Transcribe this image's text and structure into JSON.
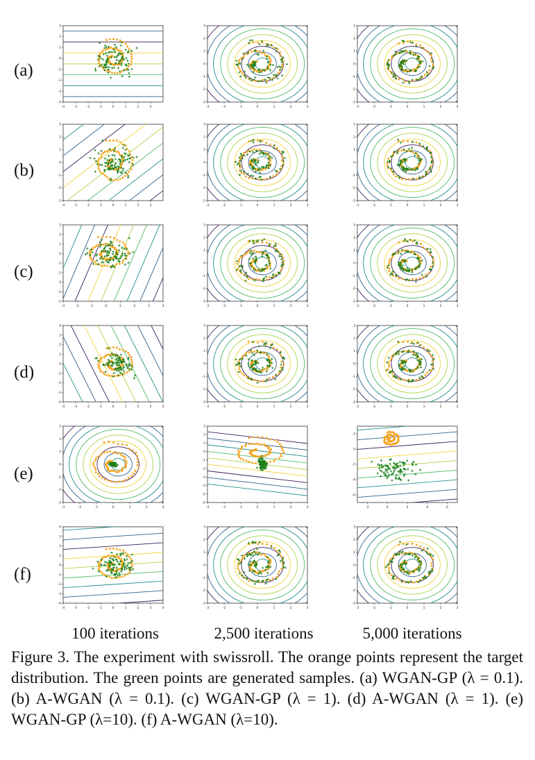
{
  "figure": {
    "row_labels": [
      "(a)",
      "(b)",
      "(c)",
      "(d)",
      "(e)",
      "(f)"
    ],
    "column_labels": [
      "100 iterations",
      "2,500 iterations",
      "5,000 iterations"
    ],
    "caption": "Figure 3.  The experiment with swissroll. The orange points represent the target distribution. The green points are generated samples.  (a) WGAN-GP (λ = 0.1).  (b) A-WGAN (λ = 0.1).  (c) WGAN-GP (λ = 1).  (d) A-WGAN (λ = 1).  (e) WGAN-GP (λ=10). (f) A-WGAN (λ=10).",
    "colors": {
      "target_points": "#f5a623",
      "generated_points": "#1a7f1a",
      "contour_palette": [
        "#3b1c5a",
        "#2c5f8a",
        "#1f8f8a",
        "#4fb86a",
        "#a8d54a",
        "#f0d43a"
      ]
    }
  },
  "chart_data": [
    {
      "type": "scatter",
      "row": "(a)",
      "column": "100 iterations",
      "xlim": [
        -4,
        4
      ],
      "ylim": [
        -4,
        3
      ],
      "xticks": [
        -4,
        -3,
        -2,
        -1,
        0,
        1,
        2,
        3
      ],
      "yticks": [
        -4,
        -3,
        -2,
        -1,
        0,
        1,
        2,
        3
      ],
      "series": [
        {
          "values": "swissroll"
        },
        {
          "values": "generated"
        }
      ]
    },
    {
      "type": "scatter",
      "row": "(a)",
      "column": "2,500 iterations",
      "xlim": [
        -3,
        3
      ],
      "ylim": [
        -3,
        3
      ],
      "xticks": [
        -3,
        -2,
        -1,
        0,
        1,
        2,
        3
      ],
      "yticks": [
        -3,
        -2,
        -1,
        0,
        1,
        2,
        3
      ]
    },
    {
      "type": "scatter",
      "row": "(a)",
      "column": "5,000 iterations",
      "xlim": [
        -3,
        3
      ],
      "ylim": [
        -3,
        3
      ],
      "xticks": [
        -3,
        -2,
        -1,
        0,
        1,
        2,
        3
      ],
      "yticks": [
        -3,
        -2,
        -1,
        0,
        1,
        2,
        3
      ]
    },
    {
      "type": "scatter",
      "row": "(b)",
      "column": "100 iterations",
      "xlim": [
        -4,
        4
      ],
      "ylim": [
        -3,
        3
      ],
      "xticks": [
        -4,
        -3,
        -2,
        -1,
        0,
        1,
        2,
        3
      ],
      "yticks": [
        -3,
        -2,
        -1,
        0,
        1,
        2,
        3
      ]
    },
    {
      "type": "scatter",
      "row": "(b)",
      "column": "2,500 iterations",
      "xlim": [
        -3,
        3
      ],
      "ylim": [
        -3,
        3
      ],
      "xticks": [
        -3,
        -2,
        -1,
        0,
        1,
        2,
        3
      ],
      "yticks": [
        -3,
        -2,
        -1,
        0,
        1,
        2,
        3
      ]
    },
    {
      "type": "scatter",
      "row": "(b)",
      "column": "5,000 iterations",
      "xlim": [
        -3,
        3
      ],
      "ylim": [
        -3,
        3
      ],
      "xticks": [
        -3,
        -2,
        -1,
        0,
        1,
        2,
        3
      ],
      "yticks": [
        -3,
        -2,
        -1,
        0,
        1,
        2,
        3
      ]
    },
    {
      "type": "scatter",
      "row": "(c)",
      "column": "100 iterations",
      "xlim": [
        -3,
        4
      ],
      "ylim": [
        -5,
        3
      ],
      "xticks": [
        -3,
        -2,
        -1,
        0,
        1,
        2,
        3,
        4
      ],
      "yticks": [
        -5,
        -4,
        -3,
        -2,
        -1,
        0,
        1,
        2,
        3
      ]
    },
    {
      "type": "scatter",
      "row": "(c)",
      "column": "2,500 iterations",
      "xlim": [
        -3,
        3
      ],
      "ylim": [
        -3,
        3
      ],
      "xticks": [
        -3,
        -2,
        -1,
        0,
        1,
        2,
        3
      ],
      "yticks": [
        -3,
        -2,
        -1,
        0,
        1,
        2,
        3
      ]
    },
    {
      "type": "scatter",
      "row": "(c)",
      "column": "5,000 iterations",
      "xlim": [
        -3,
        3
      ],
      "ylim": [
        -3,
        3
      ],
      "xticks": [
        -3,
        -2,
        -1,
        0,
        1,
        2,
        3
      ],
      "yticks": [
        -3,
        -2,
        -1,
        0,
        1,
        2,
        3
      ]
    },
    {
      "type": "scatter",
      "row": "(d)",
      "column": "100 iterations",
      "xlim": [
        -4,
        4
      ],
      "ylim": [
        -4,
        4
      ],
      "xticks": [
        -4,
        -3,
        -2,
        -1,
        0,
        1,
        2,
        3,
        4
      ],
      "yticks": [
        -4,
        -3,
        -2,
        -1,
        0,
        1,
        2,
        3,
        4
      ]
    },
    {
      "type": "scatter",
      "row": "(d)",
      "column": "2,500 iterations",
      "xlim": [
        -3,
        3
      ],
      "ylim": [
        -3,
        3
      ],
      "xticks": [
        -3,
        -2,
        -1,
        0,
        1,
        2,
        3
      ],
      "yticks": [
        -3,
        -2,
        -1,
        0,
        1,
        2,
        3
      ]
    },
    {
      "type": "scatter",
      "row": "(d)",
      "column": "5,000 iterations",
      "xlim": [
        -3,
        3
      ],
      "ylim": [
        -3,
        3
      ],
      "xticks": [
        -3,
        -2,
        -1,
        0,
        1,
        2,
        3
      ],
      "yticks": [
        -3,
        -2,
        -1,
        0,
        1,
        2,
        3
      ]
    },
    {
      "type": "scatter",
      "row": "(e)",
      "column": "100 iterations",
      "xlim": [
        -3,
        3
      ],
      "ylim": [
        -3,
        3
      ],
      "xticks": [
        -3,
        -2,
        -1,
        0,
        1,
        2,
        3
      ],
      "yticks": [
        -3,
        -2,
        -1,
        0,
        1,
        2,
        3
      ]
    },
    {
      "type": "scatter",
      "row": "(e)",
      "column": "2,500 iterations",
      "xlim": [
        -3,
        3
      ],
      "ylim": [
        -6,
        3
      ],
      "xticks": [
        -3,
        -2,
        -1,
        0,
        1,
        2,
        3
      ],
      "yticks": [
        -6,
        -5,
        -4,
        -3,
        -2,
        -1,
        0,
        1,
        2,
        3
      ]
    },
    {
      "type": "scatter",
      "row": "(e)",
      "column": "5,000 iterations",
      "xlim": [
        -3,
        7
      ],
      "ylim": [
        -7,
        3
      ],
      "xticks": [
        -2,
        0,
        2,
        4,
        6
      ],
      "yticks": [
        -6,
        -4,
        -2,
        0,
        2
      ]
    },
    {
      "type": "scatter",
      "row": "(f)",
      "column": "100 iterations",
      "xlim": [
        -4,
        4
      ],
      "ylim": [
        -4,
        4
      ],
      "xticks": [
        -4,
        -3,
        -2,
        -1,
        0,
        1,
        2,
        3,
        4
      ],
      "yticks": [
        -4,
        -3,
        -2,
        -1,
        0,
        1,
        2,
        3,
        4
      ]
    },
    {
      "type": "scatter",
      "row": "(f)",
      "column": "2,500 iterations",
      "xlim": [
        -3,
        3
      ],
      "ylim": [
        -3,
        3
      ],
      "xticks": [
        -3,
        -2,
        -1,
        0,
        1,
        2,
        3
      ],
      "yticks": [
        -3,
        -2,
        -1,
        0,
        1,
        2,
        3
      ]
    },
    {
      "type": "scatter",
      "row": "(f)",
      "column": "5,000 iterations",
      "xlim": [
        -3,
        3
      ],
      "ylim": [
        -3,
        3
      ],
      "xticks": [
        -3,
        -2,
        -1,
        0,
        1,
        2,
        3
      ],
      "yticks": [
        -3,
        -2,
        -1,
        0,
        1,
        2,
        3
      ]
    }
  ]
}
